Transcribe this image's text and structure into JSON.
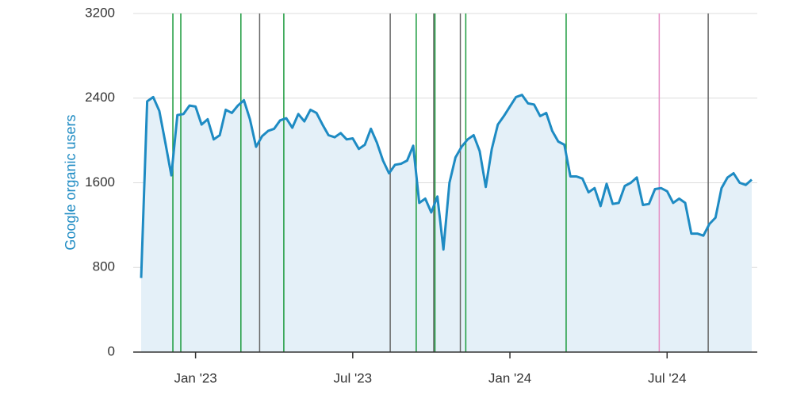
{
  "chart_data": {
    "type": "area",
    "y_label": "Google organic users",
    "categories": [
      null,
      null,
      null,
      null,
      null,
      null,
      null,
      null,
      null,
      "Jan '23",
      null,
      null,
      null,
      null,
      null,
      null,
      null,
      null,
      null,
      null,
      null,
      null,
      null,
      null,
      null,
      null,
      null,
      null,
      null,
      null,
      null,
      null,
      null,
      null,
      null,
      "Jul '23",
      null,
      null,
      null,
      null,
      null,
      null,
      null,
      null,
      null,
      null,
      null,
      null,
      null,
      null,
      null,
      null,
      null,
      null,
      null,
      null,
      null,
      null,
      null,
      null,
      null,
      "Jan '24",
      null,
      null,
      null,
      null,
      null,
      null,
      null,
      null,
      null,
      null,
      null,
      null,
      null,
      null,
      null,
      null,
      null,
      null,
      null,
      null,
      null,
      null,
      null,
      null,
      null,
      "Jul '24",
      null,
      null,
      null,
      null,
      null,
      null,
      null,
      null,
      null,
      null,
      null,
      null,
      null,
      null
    ],
    "values": [
      700,
      2370,
      2410,
      2280,
      1980,
      1670,
      2240,
      2250,
      2330,
      2320,
      2150,
      2200,
      2010,
      2050,
      2290,
      2260,
      2330,
      2380,
      2200,
      1940,
      2040,
      2090,
      2110,
      2190,
      2210,
      2120,
      2250,
      2180,
      2290,
      2260,
      2150,
      2050,
      2030,
      2070,
      2010,
      2020,
      1920,
      1960,
      2110,
      1980,
      1810,
      1690,
      1770,
      1780,
      1810,
      1950,
      1410,
      1450,
      1320,
      1470,
      970,
      1600,
      1840,
      1940,
      2010,
      2050,
      1900,
      1560,
      1920,
      2150,
      2230,
      2320,
      2410,
      2430,
      2350,
      2340,
      2230,
      2260,
      2090,
      1990,
      1960,
      1660,
      1660,
      1640,
      1510,
      1550,
      1380,
      1590,
      1400,
      1410,
      1570,
      1600,
      1650,
      1390,
      1400,
      1540,
      1550,
      1520,
      1410,
      1450,
      1410,
      1120,
      1120,
      1100,
      1210,
      1270,
      1550,
      1650,
      1690,
      1600,
      1580,
      1630
    ],
    "color": "#1e8bc3",
    "fill": "#e4f0f8",
    "ylim": [
      0,
      3200
    ],
    "yticks": [
      0,
      800,
      1600,
      2400,
      3200
    ],
    "grid": true,
    "event_lines": [
      {
        "position": 5.25,
        "color": "#1a9a3c"
      },
      {
        "position": 6.56,
        "color": "#1a9a3c"
      },
      {
        "position": 16.5,
        "color": "#1a9a3c"
      },
      {
        "position": 19.6,
        "color": "#666666"
      },
      {
        "position": 23.6,
        "color": "#1a9a3c"
      },
      {
        "position": 41.2,
        "color": "#666666"
      },
      {
        "position": 45.5,
        "color": "#1a9a3c"
      },
      {
        "position": 48.4,
        "color": "#666666"
      },
      {
        "position": 48.6,
        "color": "#1a9a3c"
      },
      {
        "position": 52.8,
        "color": "#666666"
      },
      {
        "position": 53.7,
        "color": "#1a9a3c"
      },
      {
        "position": 70.3,
        "color": "#1a9a3c"
      },
      {
        "position": 85.7,
        "color": "#e58fc4"
      },
      {
        "position": 93.8,
        "color": "#666666"
      }
    ]
  }
}
